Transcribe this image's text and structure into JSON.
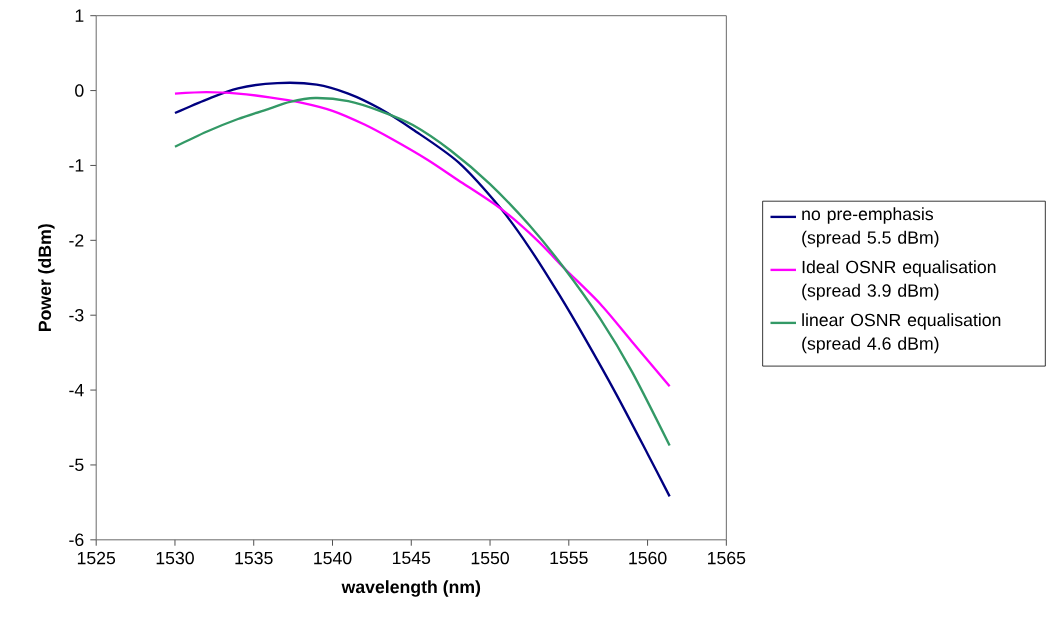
{
  "chart_data": {
    "type": "line",
    "xlabel": "wavelength (nm)",
    "ylabel": "Power (dBm)",
    "xlim": [
      1525,
      1565
    ],
    "xticks": [
      1525,
      1530,
      1535,
      1540,
      1545,
      1550,
      1555,
      1560,
      1565
    ],
    "ylim": [
      -6,
      1
    ],
    "yticks": [
      -6,
      -5,
      -4,
      -3,
      -2,
      -1,
      0,
      1
    ],
    "grid": false,
    "legend": "right",
    "marker": "none",
    "line_style": "solid",
    "series": [
      {
        "name": "no pre-emphasis (spread 5.5 dBm)",
        "color": "#000080",
        "x": [
          1530,
          1532,
          1534,
          1536.5,
          1539,
          1541,
          1543,
          1545.1,
          1548,
          1550.7,
          1552.5,
          1554.4,
          1556,
          1558,
          1560,
          1561.4
        ],
        "values": [
          -0.3,
          -0.12,
          0.03,
          0.1,
          0.08,
          -0.04,
          -0.24,
          -0.52,
          -0.96,
          -1.58,
          -2.1,
          -2.73,
          -3.3,
          -4.05,
          -4.85,
          -5.42
        ]
      },
      {
        "name": "Ideal OSNR equalisation (spread 3.9 dBm)",
        "color": "#ff00ff",
        "x": [
          1530,
          1532,
          1534,
          1536,
          1538,
          1540,
          1542,
          1543.8,
          1546,
          1548,
          1550.7,
          1553,
          1554.7,
          1557,
          1559,
          1561.4
        ],
        "values": [
          -0.04,
          -0.02,
          -0.04,
          -0.09,
          -0.16,
          -0.27,
          -0.45,
          -0.65,
          -0.92,
          -1.2,
          -1.58,
          -2.0,
          -2.37,
          -2.85,
          -3.35,
          -3.95
        ]
      },
      {
        "name": "linear OSNR equalisation (spread 4.6 dBm)",
        "color": "#339966",
        "x": [
          1530,
          1532,
          1534,
          1536,
          1537.3,
          1538.9,
          1541,
          1543,
          1545.1,
          1547.5,
          1550,
          1552.5,
          1554.7,
          1557,
          1559,
          1561.4
        ],
        "values": [
          -0.75,
          -0.55,
          -0.38,
          -0.24,
          -0.15,
          -0.1,
          -0.14,
          -0.27,
          -0.46,
          -0.8,
          -1.25,
          -1.8,
          -2.37,
          -3.05,
          -3.75,
          -4.74
        ]
      }
    ]
  }
}
